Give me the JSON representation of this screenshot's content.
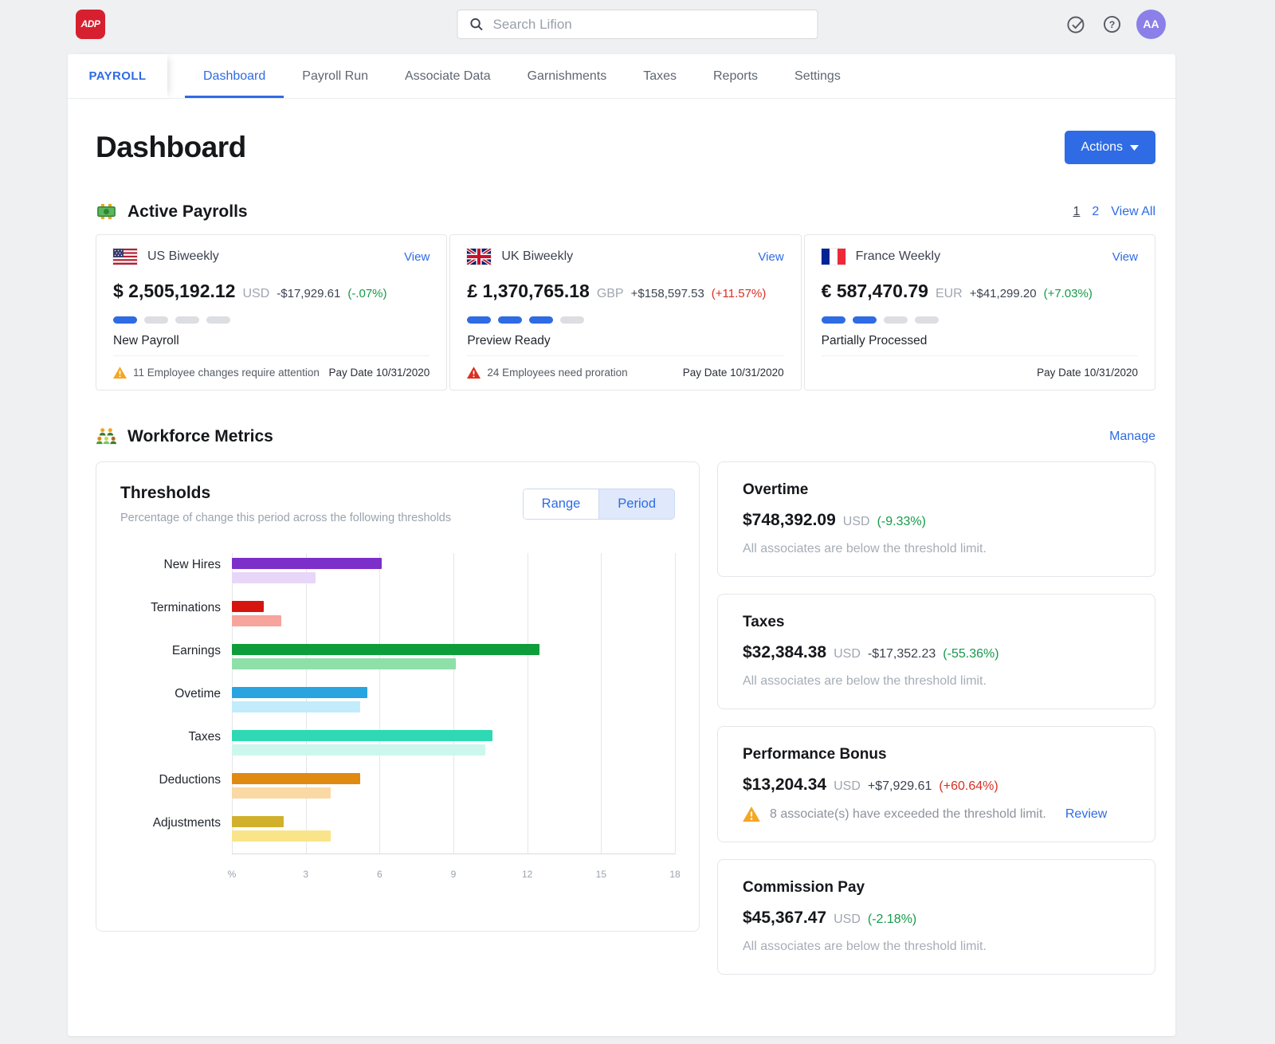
{
  "topbar": {
    "logo_text": "ADP",
    "search_placeholder": "Search Lifion",
    "avatar_initials": "AA"
  },
  "nav": {
    "product_label": "PAYROLL",
    "tabs": [
      {
        "label": "Dashboard",
        "active": true
      },
      {
        "label": "Payroll Run",
        "active": false
      },
      {
        "label": "Associate Data",
        "active": false
      },
      {
        "label": "Garnishments",
        "active": false
      },
      {
        "label": "Taxes",
        "active": false
      },
      {
        "label": "Reports",
        "active": false
      },
      {
        "label": "Settings",
        "active": false
      }
    ]
  },
  "page": {
    "title": "Dashboard",
    "actions_label": "Actions"
  },
  "colors": {
    "accent": "#2e6be4",
    "green": "#169a4a",
    "red": "#da2f22",
    "warning_orange": "#f5a623"
  },
  "payrolls": {
    "section_title": "Active Payrolls",
    "pagination": {
      "page1": "1",
      "page2": "2",
      "view_all": "View All"
    },
    "cards": [
      {
        "name": "US Biweekly",
        "view_label": "View",
        "amount": "$ 2,505,192.12",
        "currency": "USD",
        "delta": "-$17,929.61",
        "delta_pct": "(-.07%)",
        "pct_color": "#169a4a",
        "progress_filled": 1,
        "progress_total": 4,
        "status": "New Payroll",
        "warning": "11 Employee changes require attention",
        "warning_color": "#f5a623",
        "pay_date": "Pay Date 10/31/2020"
      },
      {
        "name": "UK Biweekly",
        "view_label": "View",
        "amount": "£ 1,370,765.18",
        "currency": "GBP",
        "delta": "+$158,597.53",
        "delta_pct": "(+11.57%)",
        "pct_color": "#da2f22",
        "progress_filled": 3,
        "progress_total": 4,
        "status": "Preview Ready",
        "warning": "24 Employees need proration",
        "warning_color": "#da2f22",
        "pay_date": "Pay Date 10/31/2020"
      },
      {
        "name": "France Weekly",
        "view_label": "View",
        "amount": "€ 587,470.79",
        "currency": "EUR",
        "delta": "+$41,299.20",
        "delta_pct": "(+7.03%)",
        "pct_color": "#169a4a",
        "progress_filled": 2,
        "progress_total": 4,
        "status": "Partially Processed",
        "warning": null,
        "pay_date": "Pay Date 10/31/2020"
      }
    ]
  },
  "workforce": {
    "section_title": "Workforce Metrics",
    "manage_label": "Manage",
    "thresholds_toggle": {
      "range_label": "Range",
      "period_label": "Period",
      "selected": "Period"
    },
    "metric_cards": [
      {
        "title": "Overtime",
        "amount": "$748,392.09",
        "currency": "USD",
        "delta": "",
        "delta_pct": "(-9.33%)",
        "pct_color": "#169a4a",
        "status": "All associates are below the threshold limit."
      },
      {
        "title": "Taxes",
        "amount": "$32,384.38",
        "currency": "USD",
        "delta": "-$17,352.23",
        "delta_pct": "(-55.36%)",
        "pct_color": "#169a4a",
        "status": "All associates are below the threshold limit."
      },
      {
        "title": "Performance Bonus",
        "amount": "$13,204.34",
        "currency": "USD",
        "delta": "+$7,929.61",
        "delta_pct": "(+60.64%)",
        "pct_color": "#da2f22",
        "warning": "8 associate(s) have exceeded the threshold limit.",
        "review_label": "Review"
      },
      {
        "title": "Commission Pay",
        "amount": "$45,367.47",
        "currency": "USD",
        "delta": "",
        "delta_pct": "(-2.18%)",
        "pct_color": "#169a4a",
        "status": "All associates are below the threshold limit."
      }
    ]
  },
  "chart_data": {
    "type": "bar",
    "orientation": "horizontal",
    "title": "Thresholds",
    "subtitle": "Percentage of change this period across the following thresholds",
    "categories": [
      "New Hires",
      "Terminations",
      "Earnings",
      "Ovetime",
      "Taxes",
      "Deductions",
      "Adjustments"
    ],
    "series": [
      {
        "name": "primary",
        "values": [
          6.1,
          1.3,
          12.5,
          5.5,
          10.6,
          5.2,
          2.1
        ]
      },
      {
        "name": "secondary",
        "values": [
          3.4,
          2.0,
          9.1,
          5.2,
          10.3,
          4.0,
          4.0
        ]
      }
    ],
    "bar_colors": [
      [
        "#7d2fc9",
        "#e8d6f8"
      ],
      [
        "#d6150f",
        "#f7a49d"
      ],
      [
        "#0f9d3c",
        "#8fdfa9"
      ],
      [
        "#28a4e0",
        "#c2ecfb"
      ],
      [
        "#2ed9b4",
        "#ccf7ed"
      ],
      [
        "#e08a12",
        "#fbd9a4"
      ],
      [
        "#d1b02c",
        "#fae489"
      ]
    ],
    "xlabel": "",
    "ylabel": "",
    "xlim": [
      0,
      18
    ],
    "xticks": [
      "%",
      "3",
      "6",
      "9",
      "12",
      "15",
      "18"
    ],
    "grid": true,
    "legend": false
  }
}
